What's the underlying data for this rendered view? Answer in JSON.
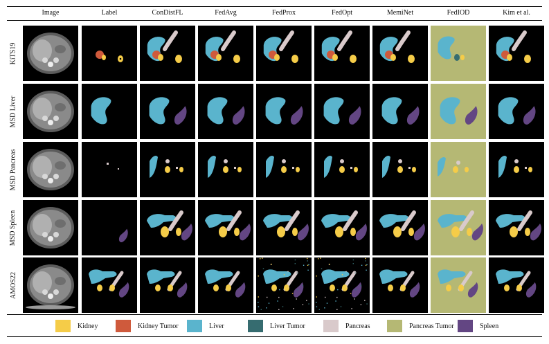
{
  "columns": [
    "Image",
    "Label",
    "ConDistFL",
    "FedAvg",
    "FedProx",
    "FedOpt",
    "MemiNet",
    "FedIOD",
    "Kim et al."
  ],
  "rows": [
    "KiTS19",
    "MSD Liver",
    "MSD Pancreas",
    "MSD Spleen",
    "AMOS22"
  ],
  "legend": [
    {
      "label": "Kidney",
      "color": "#f5cc48"
    },
    {
      "label": "Kidney Tumor",
      "color": "#cf5a3c"
    },
    {
      "label": "Liver",
      "color": "#5ab4cd"
    },
    {
      "label": "Liver Tumor",
      "color": "#366c70"
    },
    {
      "label": "Pancreas",
      "color": "#d9cacb"
    },
    {
      "label": "Pancreas Tumor",
      "color": "#b5b874"
    },
    {
      "label": "Spleen",
      "color": "#634683"
    }
  ]
}
